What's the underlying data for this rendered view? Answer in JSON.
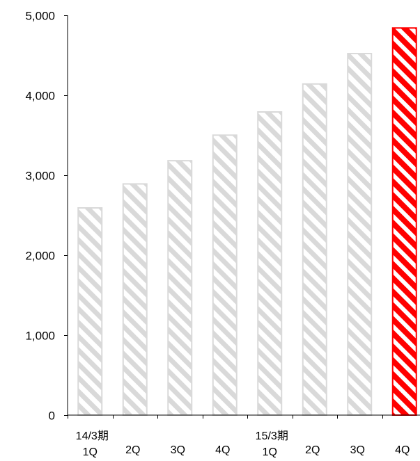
{
  "chart_data": {
    "type": "bar",
    "categories": [
      "14/3期 1Q",
      "2Q",
      "3Q",
      "4Q",
      "15/3期 1Q",
      "2Q",
      "3Q",
      "4Q"
    ],
    "category_labels": [
      [
        "14/3期",
        "1Q"
      ],
      [
        "2Q"
      ],
      [
        "3Q"
      ],
      [
        "4Q"
      ],
      [
        "15/3期",
        "1Q"
      ],
      [
        "2Q"
      ],
      [
        "3Q"
      ],
      [
        "4Q"
      ]
    ],
    "values": [
      2600,
      2900,
      3190,
      3510,
      3800,
      4150,
      4530,
      4850
    ],
    "highlight_index": 7,
    "ylim": [
      0,
      5000
    ],
    "yticks": [
      0,
      1000,
      2000,
      3000,
      4000,
      5000
    ],
    "ytick_labels": [
      "0",
      "1,000",
      "2,000",
      "3,000",
      "4,000",
      "5,000"
    ],
    "grid": false,
    "colors": {
      "bar_fill": "#ffffff",
      "bar_stripe": "#d9d9d9",
      "bar_border": "#d9d9d9",
      "highlight_stripe": "#ff0000",
      "highlight_border": "#ff0000",
      "axis": "#000000"
    }
  }
}
